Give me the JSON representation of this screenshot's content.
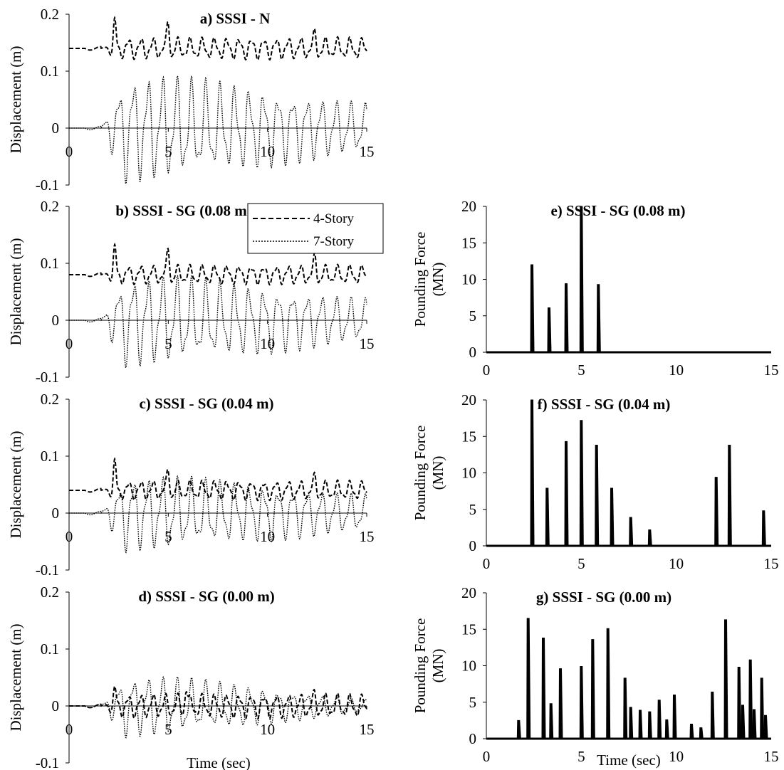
{
  "figure": {
    "x_axis_label": "Time (sec)",
    "legend": [
      {
        "label": "4-Story",
        "style": "dashed"
      },
      {
        "label": "7-Story",
        "style": "dotted"
      }
    ]
  },
  "chart_data": [
    {
      "id": "a",
      "type": "line",
      "title": "a) SSSI - N",
      "ylabel": "Displacement (m)",
      "xlabel": "",
      "xlim": [
        0,
        15
      ],
      "ylim": [
        -0.1,
        0.2
      ],
      "xticks": [
        "0",
        "5",
        "10",
        "15"
      ],
      "yticks": [
        "-0.1",
        "0",
        "0.1",
        "0.2"
      ],
      "series": [
        {
          "name": "4-Story",
          "style": "dashed",
          "signal": {
            "base": 0.14,
            "amp": 0.018,
            "period": 0.62,
            "peaks": [
              [
                2.3,
                0.048
              ],
              [
                5.0,
                0.045
              ],
              [
                12.4,
                0.022
              ]
            ]
          }
        },
        {
          "name": "7-Story",
          "style": "dotted",
          "signal": {
            "base": 0.0,
            "amp": 0.088,
            "period": 0.73,
            "peak_t": 4.8,
            "end_amp": 0.04
          }
        }
      ]
    },
    {
      "id": "b",
      "type": "line",
      "title": "b) SSSI - SG (0.08 m)",
      "ylabel": "Displacement (m)",
      "xlabel": "",
      "xlim": [
        0,
        15
      ],
      "ylim": [
        -0.1,
        0.2
      ],
      "xticks": [
        "0",
        "5",
        "10",
        "15"
      ],
      "yticks": [
        "-0.1",
        "0",
        "0.1",
        "0.2"
      ],
      "series": [
        {
          "name": "4-Story",
          "style": "dashed",
          "signal": {
            "base": 0.08,
            "amp": 0.016,
            "period": 0.62,
            "peaks": [
              [
                2.3,
                0.048
              ],
              [
                5.0,
                0.045
              ],
              [
                12.4,
                0.028
              ]
            ]
          }
        },
        {
          "name": "7-Story",
          "style": "dotted",
          "signal": {
            "base": 0.0,
            "amp": 0.075,
            "period": 0.73,
            "peak_t": 4.8,
            "end_amp": 0.035
          }
        }
      ]
    },
    {
      "id": "c",
      "type": "line",
      "title": "c) SSSI - SG (0.04 m)",
      "ylabel": "Displacement (m)",
      "xlabel": "",
      "xlim": [
        0,
        15
      ],
      "ylim": [
        -0.1,
        0.2
      ],
      "xticks": [
        "0",
        "5",
        "10",
        "15"
      ],
      "yticks": [
        "-0.1",
        "0",
        "0.1",
        "0.2"
      ],
      "series": [
        {
          "name": "4-Story",
          "style": "dashed",
          "signal": {
            "base": 0.04,
            "amp": 0.016,
            "period": 0.62,
            "peaks": [
              [
                2.3,
                0.05
              ],
              [
                5.0,
                0.035
              ],
              [
                12.4,
                0.02
              ]
            ]
          }
        },
        {
          "name": "7-Story",
          "style": "dotted",
          "signal": {
            "base": 0.0,
            "amp": 0.062,
            "period": 0.73,
            "peak_t": 4.8,
            "end_amp": 0.03
          }
        }
      ]
    },
    {
      "id": "d",
      "type": "line",
      "title": "d) SSSI - SG (0.00 m)",
      "ylabel": "Displacement (m)",
      "xlabel": "Time (sec)",
      "xlim": [
        0,
        15
      ],
      "ylim": [
        -0.1,
        0.2
      ],
      "xticks": [
        "0",
        "5",
        "10",
        "15"
      ],
      "yticks": [
        "-0.1",
        "0",
        "0.1",
        "0.2"
      ],
      "series": [
        {
          "name": "4-Story",
          "style": "dashed",
          "signal": {
            "base": 0.0,
            "amp": 0.02,
            "period": 0.62,
            "peaks": [
              [
                2.3,
                0.028
              ],
              [
                5.9,
                0.035
              ],
              [
                12.4,
                0.012
              ]
            ]
          }
        },
        {
          "name": "7-Story",
          "style": "dotted",
          "signal": {
            "base": 0.0,
            "amp": 0.05,
            "period": 0.73,
            "peak_t": 4.8,
            "end_amp": 0.01
          }
        }
      ]
    },
    {
      "id": "e",
      "type": "bar",
      "title": "e) SSSI - SG (0.08 m)",
      "ylabel": "Pounding Force (MN)",
      "xlabel": "",
      "xlim": [
        0,
        15
      ],
      "ylim": [
        0,
        20
      ],
      "xticks": [
        "0",
        "5",
        "10",
        "15"
      ],
      "yticks": [
        "0",
        "5",
        "10",
        "15",
        "20"
      ],
      "spikes": [
        [
          2.4,
          12
        ],
        [
          3.3,
          6.1
        ],
        [
          4.2,
          9.4
        ],
        [
          5.0,
          20
        ],
        [
          5.9,
          9.3
        ]
      ]
    },
    {
      "id": "f",
      "type": "bar",
      "title": "f) SSSI - SG (0.04 m)",
      "ylabel": "Pounding Force (MN)",
      "xlabel": "",
      "xlim": [
        0,
        15
      ],
      "ylim": [
        0,
        20
      ],
      "xticks": [
        "0",
        "5",
        "10",
        "15"
      ],
      "yticks": [
        "0",
        "5",
        "10",
        "15",
        "20"
      ],
      "spikes": [
        [
          2.4,
          20
        ],
        [
          3.2,
          7.9
        ],
        [
          4.2,
          14.3
        ],
        [
          5.0,
          17.2
        ],
        [
          5.8,
          13.8
        ],
        [
          6.6,
          7.9
        ],
        [
          7.6,
          3.9
        ],
        [
          8.6,
          2.2
        ],
        [
          12.1,
          9.4
        ],
        [
          12.8,
          13.8
        ],
        [
          14.6,
          4.8
        ]
      ]
    },
    {
      "id": "g",
      "type": "bar",
      "title": "g) SSSI - SG (0.00 m)",
      "ylabel": "Pounding Force (MN)",
      "xlabel": "Time (sec)",
      "xlim": [
        0,
        15
      ],
      "ylim": [
        0,
        20
      ],
      "xticks": [
        "0",
        "5",
        "10",
        "15"
      ],
      "yticks": [
        "0",
        "5",
        "10",
        "15",
        "20"
      ],
      "spikes": [
        [
          1.7,
          2.5
        ],
        [
          2.2,
          16.5
        ],
        [
          3.0,
          13.8
        ],
        [
          3.4,
          4.8
        ],
        [
          3.9,
          9.6
        ],
        [
          5.0,
          9.9
        ],
        [
          5.6,
          13.6
        ],
        [
          6.4,
          15.1
        ],
        [
          7.3,
          8.3
        ],
        [
          7.6,
          4.3
        ],
        [
          8.1,
          3.9
        ],
        [
          8.6,
          3.7
        ],
        [
          9.1,
          5.3
        ],
        [
          9.5,
          2.6
        ],
        [
          9.9,
          6.0
        ],
        [
          10.8,
          2.0
        ],
        [
          11.3,
          1.5
        ],
        [
          11.9,
          6.4
        ],
        [
          12.6,
          16.3
        ],
        [
          13.3,
          9.8
        ],
        [
          13.5,
          4.6
        ],
        [
          13.9,
          10.8
        ],
        [
          14.1,
          4.0
        ],
        [
          14.5,
          8.3
        ],
        [
          14.7,
          3.2
        ]
      ]
    }
  ]
}
